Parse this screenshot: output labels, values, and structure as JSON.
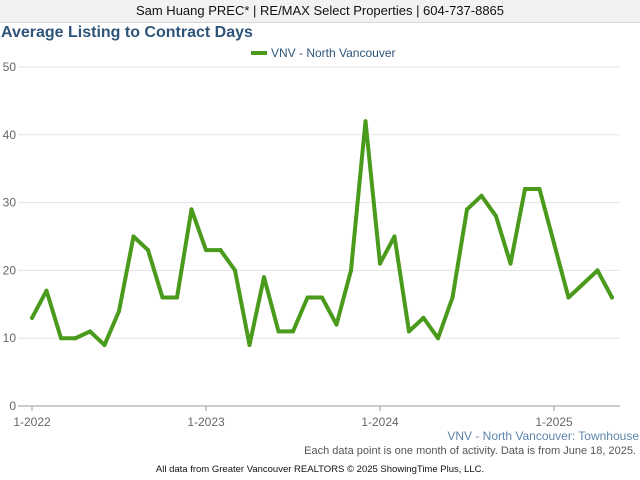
{
  "header": {
    "text": "Sam Huang PREC* | RE/MAX Select Properties | 604-737-8865"
  },
  "chart_data": {
    "type": "line",
    "title": "Average Listing to Contract Days",
    "xlabel": "",
    "ylabel": "",
    "ylim": [
      0,
      50
    ],
    "yticks": [
      0,
      10,
      20,
      30,
      40,
      50
    ],
    "xtick_labels": [
      "1-2022",
      "1-2023",
      "1-2024",
      "1-2025"
    ],
    "grid": true,
    "legend_position": "top",
    "x": [
      "1-2022",
      "2-2022",
      "3-2022",
      "4-2022",
      "5-2022",
      "6-2022",
      "7-2022",
      "8-2022",
      "9-2022",
      "10-2022",
      "11-2022",
      "12-2022",
      "1-2023",
      "2-2023",
      "3-2023",
      "4-2023",
      "5-2023",
      "6-2023",
      "7-2023",
      "8-2023",
      "9-2023",
      "10-2023",
      "11-2023",
      "12-2023",
      "1-2024",
      "2-2024",
      "3-2024",
      "4-2024",
      "5-2024",
      "6-2024",
      "7-2024",
      "8-2024",
      "9-2024",
      "10-2024",
      "11-2024",
      "12-2024",
      "1-2025",
      "2-2025",
      "3-2025",
      "4-2025",
      "5-2025"
    ],
    "series": [
      {
        "name": "VNV - North Vancouver",
        "color": "#4a9a1c",
        "values": [
          13,
          17,
          10,
          10,
          11,
          9,
          14,
          25,
          23,
          16,
          16,
          29,
          23,
          23,
          20,
          9,
          19,
          11,
          11,
          16,
          16,
          12,
          20,
          42,
          21,
          25,
          11,
          13,
          10,
          16,
          29,
          31,
          28,
          21,
          32,
          32,
          24,
          16,
          18,
          20,
          16
        ]
      }
    ]
  },
  "footer": {
    "series_label": "VNV - North Vancouver: Townhouse",
    "note": "Each data point is one month of activity. Data is from June 18, 2025.",
    "copyright": "All data from Greater Vancouver REALTORS © 2025 ShowingTime Plus, LLC."
  }
}
